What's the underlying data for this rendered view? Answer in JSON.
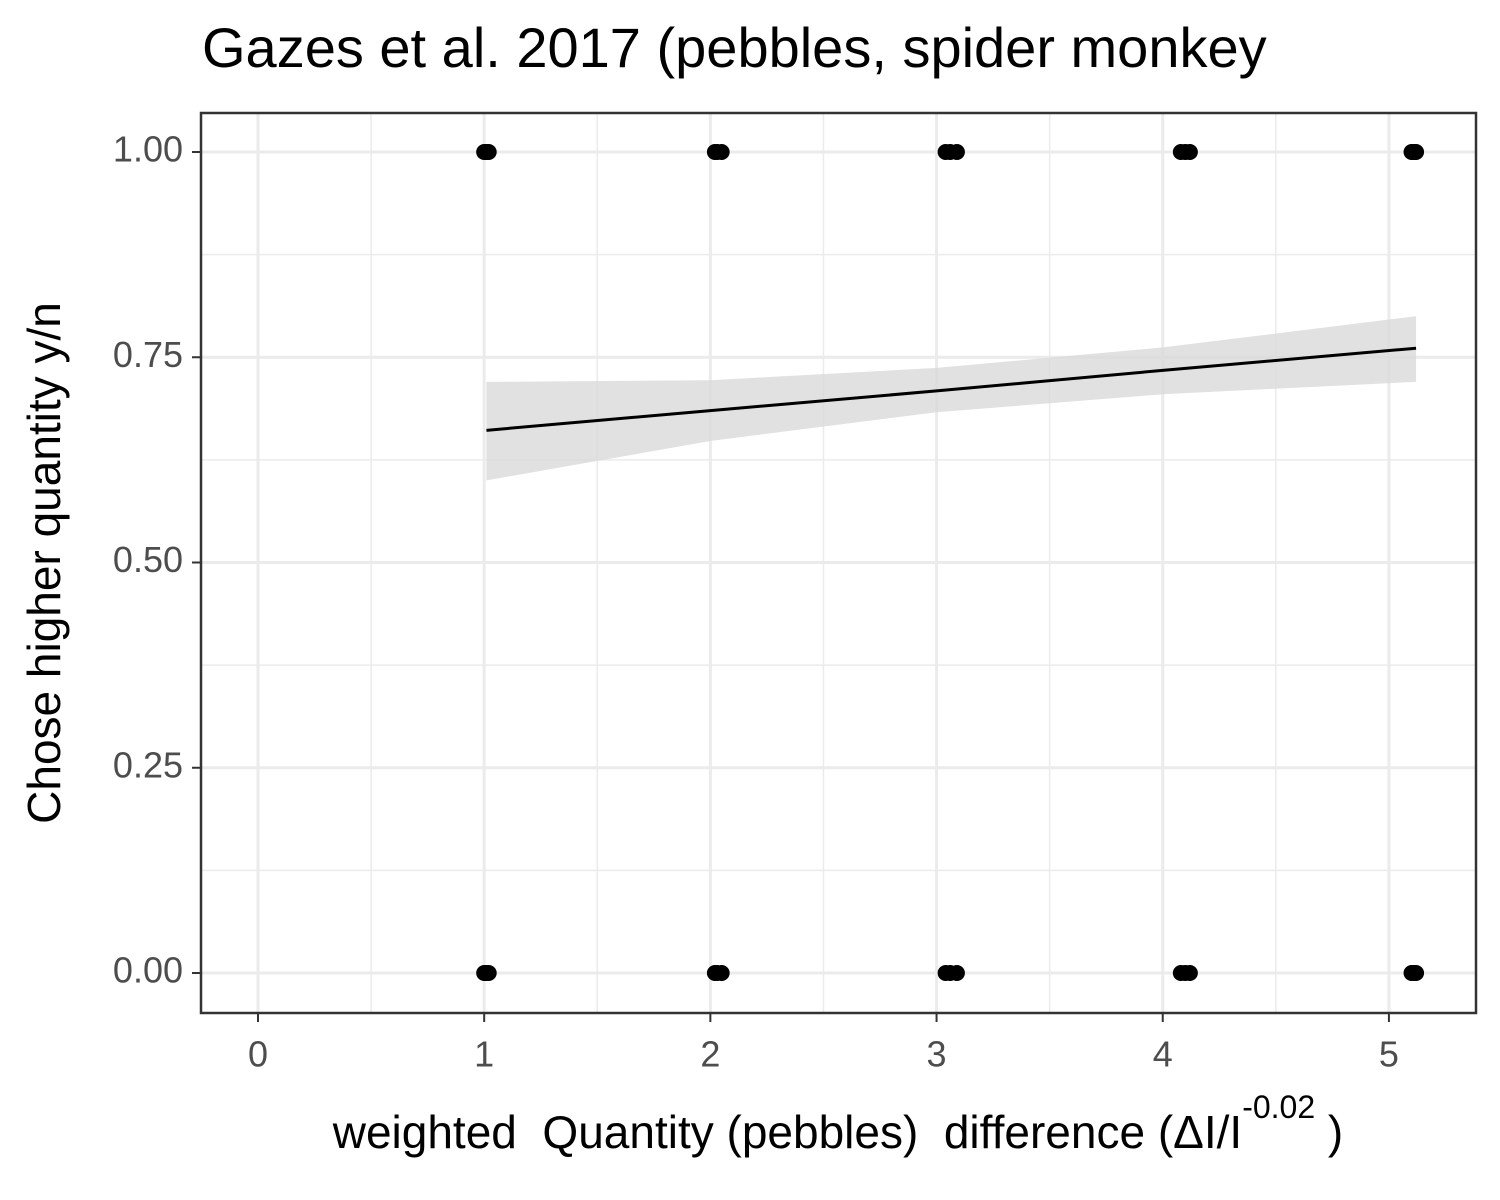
{
  "chart_data": {
    "type": "scatter",
    "title": "Gazes et al. 2017 (pebbles, spider monkey",
    "x_label": {
      "text": "weighted  Quantity (pebbles)  difference (ΔI/I",
      "superscript": "-0.02",
      "end": " )"
    },
    "y_label": "Chose higher quantity y/n",
    "xlim": [
      -0.252,
      5.385
    ],
    "ylim": [
      -0.0487,
      1.0475
    ],
    "xticks": [
      0,
      1,
      2,
      3,
      4,
      5
    ],
    "yticks": [
      {
        "value": 0,
        "label": "0.00"
      },
      {
        "value": 0.25,
        "label": "0.25"
      },
      {
        "value": 0.5,
        "label": "0.50"
      },
      {
        "value": 0.75,
        "label": "0.75"
      },
      {
        "value": 1,
        "label": "1.00"
      }
    ],
    "grid": true,
    "points": {
      "color": "#000000",
      "x": [
        1.0,
        1.01,
        1.02,
        2.02,
        2.03,
        2.05,
        3.04,
        3.06,
        3.09,
        4.08,
        4.1,
        4.12,
        5.1,
        5.11,
        5.12,
        1.0,
        1.01,
        1.02,
        2.02,
        2.03,
        2.05,
        3.04,
        3.06,
        3.09,
        4.08,
        4.1,
        4.12,
        5.1,
        5.11,
        5.12
      ],
      "values": [
        1,
        1,
        1,
        1,
        1,
        1,
        1,
        1,
        1,
        1,
        1,
        1,
        1,
        1,
        1,
        0,
        0,
        0,
        0,
        0,
        0,
        0,
        0,
        0,
        0,
        0,
        0,
        0,
        0,
        0
      ]
    },
    "fit": {
      "color": "#000000",
      "band_color": "#d9d9d9",
      "x": [
        1.01,
        2,
        3,
        4,
        5.12
      ],
      "values": [
        0.661,
        0.685,
        0.709,
        0.734,
        0.761
      ],
      "lower": [
        0.6,
        0.648,
        0.683,
        0.705,
        0.72
      ],
      "upper": [
        0.72,
        0.722,
        0.737,
        0.762,
        0.8
      ]
    }
  }
}
